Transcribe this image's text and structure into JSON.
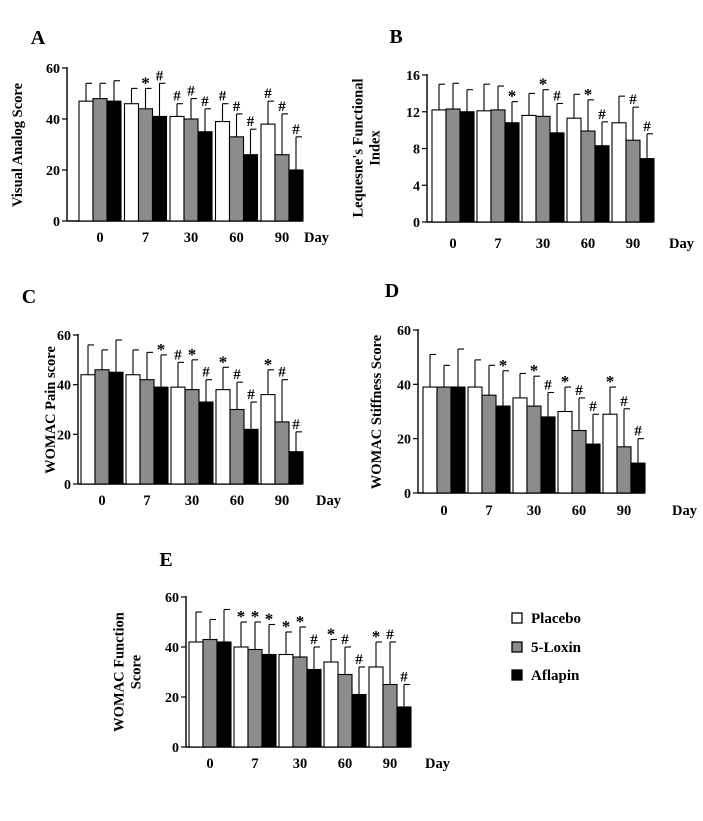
{
  "legend": {
    "items": [
      {
        "label": "Placebo",
        "color": "#ffffff"
      },
      {
        "label": "5-Loxin",
        "color": "#8c8c8c"
      },
      {
        "label": "Aflapin",
        "color": "#000000"
      }
    ]
  },
  "chart_data": [
    {
      "panel": "A",
      "type": "bar",
      "title": "",
      "ylabel": "Visual Analog Score",
      "xlabel": "Day",
      "ylabel_lines": [
        "Visual Analog Score"
      ],
      "categories": [
        "0",
        "7",
        "30",
        "60",
        "90"
      ],
      "ylim": [
        0,
        60
      ],
      "yticks": [
        0,
        20,
        40,
        60
      ],
      "series": [
        {
          "name": "Placebo",
          "values": [
            47,
            46,
            41,
            39,
            38
          ],
          "errors": [
            7,
            6,
            5,
            7,
            9
          ]
        },
        {
          "name": "5-Loxin",
          "values": [
            48,
            44,
            40,
            33,
            26
          ],
          "errors": [
            6,
            8,
            8,
            9,
            16
          ]
        },
        {
          "name": "Aflapin",
          "values": [
            47,
            41,
            35,
            26,
            20
          ],
          "errors": [
            8,
            13,
            9,
            10,
            13
          ]
        }
      ],
      "marks": [
        [
          "",
          "",
          ""
        ],
        [
          "",
          "*",
          "#"
        ],
        [
          "#",
          "#",
          "#"
        ],
        [
          "#",
          "#",
          "#"
        ],
        [
          "#",
          "#",
          "#"
        ]
      ]
    },
    {
      "panel": "B",
      "type": "bar",
      "title": "",
      "ylabel": "Lequesne's Functional Index",
      "xlabel": "Day",
      "ylabel_lines": [
        "Lequesne's Functional",
        "Index"
      ],
      "categories": [
        "0",
        "7",
        "30",
        "60",
        "90"
      ],
      "ylim": [
        0,
        16
      ],
      "yticks": [
        0,
        4,
        8,
        12,
        16
      ],
      "series": [
        {
          "name": "Placebo",
          "values": [
            12.2,
            12.1,
            11.6,
            11.3,
            10.8
          ],
          "errors": [
            2.8,
            2.9,
            2.4,
            2.6,
            2.9
          ]
        },
        {
          "name": "5-Loxin",
          "values": [
            12.3,
            12.2,
            11.5,
            9.9,
            8.9
          ],
          "errors": [
            2.8,
            2.6,
            2.9,
            3.4,
            3.6
          ]
        },
        {
          "name": "Aflapin",
          "values": [
            12.0,
            10.8,
            9.7,
            8.3,
            6.9
          ],
          "errors": [
            2.4,
            2.3,
            3.2,
            2.6,
            2.7
          ]
        }
      ],
      "marks": [
        [
          "",
          "",
          ""
        ],
        [
          "",
          "",
          "*"
        ],
        [
          "",
          "*",
          "#"
        ],
        [
          "",
          "*",
          "#"
        ],
        [
          "",
          "#",
          "#"
        ]
      ]
    },
    {
      "panel": "C",
      "type": "bar",
      "title": "",
      "ylabel": "WOMAC Pain score",
      "xlabel": "Day",
      "ylabel_lines": [
        "WOMAC Pain score"
      ],
      "categories": [
        "0",
        "7",
        "30",
        "60",
        "90"
      ],
      "ylim": [
        0,
        60
      ],
      "yticks": [
        0,
        20,
        40,
        60
      ],
      "series": [
        {
          "name": "Placebo",
          "values": [
            44,
            44,
            39,
            38,
            36
          ],
          "errors": [
            12,
            10,
            10,
            9,
            10
          ]
        },
        {
          "name": "5-Loxin",
          "values": [
            46,
            42,
            38,
            30,
            25
          ],
          "errors": [
            8,
            11,
            12,
            11,
            17
          ]
        },
        {
          "name": "Aflapin",
          "values": [
            45,
            39,
            33,
            22,
            13
          ],
          "errors": [
            13,
            13,
            9,
            11,
            8
          ]
        }
      ],
      "marks": [
        [
          "",
          "",
          ""
        ],
        [
          "",
          "",
          "*"
        ],
        [
          "#",
          "*",
          "#"
        ],
        [
          "*",
          "#",
          "#"
        ],
        [
          "*",
          "#",
          "#"
        ]
      ]
    },
    {
      "panel": "D",
      "type": "bar",
      "title": "",
      "ylabel": "WOMAC Stiffness Score",
      "xlabel": "Day",
      "ylabel_lines": [
        "WOMAC Stiffness Score"
      ],
      "categories": [
        "0",
        "7",
        "30",
        "60",
        "90"
      ],
      "ylim": [
        0,
        60
      ],
      "yticks": [
        0,
        20,
        40,
        60
      ],
      "series": [
        {
          "name": "Placebo",
          "values": [
            39,
            39,
            35,
            30,
            29
          ],
          "errors": [
            12,
            10,
            9,
            9,
            10
          ]
        },
        {
          "name": "5-Loxin",
          "values": [
            39,
            36,
            32,
            23,
            17
          ],
          "errors": [
            8,
            11,
            11,
            12,
            14
          ]
        },
        {
          "name": "Aflapin",
          "values": [
            39,
            32,
            28,
            18,
            11
          ],
          "errors": [
            14,
            13,
            9,
            11,
            9
          ]
        }
      ],
      "marks": [
        [
          "",
          "",
          ""
        ],
        [
          "",
          "",
          "*"
        ],
        [
          "",
          "*",
          "#"
        ],
        [
          "*",
          "#",
          "#"
        ],
        [
          "*",
          "#",
          "#"
        ]
      ]
    },
    {
      "panel": "E",
      "type": "bar",
      "title": "",
      "ylabel": "WOMAC Function Score",
      "xlabel": "Day",
      "ylabel_lines": [
        "WOMAC Function",
        "Score"
      ],
      "categories": [
        "0",
        "7",
        "30",
        "60",
        "90"
      ],
      "ylim": [
        0,
        60
      ],
      "yticks": [
        0,
        20,
        40,
        60
      ],
      "series": [
        {
          "name": "Placebo",
          "values": [
            42,
            40,
            37,
            34,
            32
          ],
          "errors": [
            12,
            10,
            9,
            9,
            10
          ]
        },
        {
          "name": "5-Loxin",
          "values": [
            43,
            39,
            36,
            29,
            25
          ],
          "errors": [
            8,
            11,
            12,
            11,
            17
          ]
        },
        {
          "name": "Aflapin",
          "values": [
            42,
            37,
            31,
            21,
            16
          ],
          "errors": [
            13,
            12,
            9,
            11,
            9
          ]
        }
      ],
      "marks": [
        [
          "",
          "",
          ""
        ],
        [
          "*",
          "*",
          "*"
        ],
        [
          "*",
          "*",
          "#"
        ],
        [
          "*",
          "#",
          "#"
        ],
        [
          "*",
          "#",
          "#"
        ]
      ]
    }
  ]
}
